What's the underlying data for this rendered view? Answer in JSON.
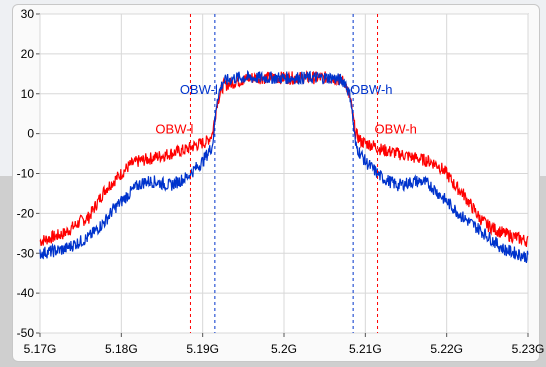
{
  "chart_data": {
    "type": "line",
    "title": "",
    "xlabel": "",
    "ylabel": "",
    "xlim": [
      5.17,
      5.23
    ],
    "ylim": [
      -50,
      30
    ],
    "x_ticks": [
      5.17,
      5.18,
      5.19,
      5.2,
      5.21,
      5.22,
      5.23
    ],
    "x_tick_labels": [
      "5.17G",
      "5.18G",
      "5.19G",
      "5.2G",
      "5.21G",
      "5.22G",
      "5.23G"
    ],
    "y_ticks": [
      -50,
      -40,
      -30,
      -20,
      -10,
      0,
      10,
      20,
      30
    ],
    "y_tick_labels": [
      "-50",
      "-40",
      "-30",
      "-20",
      "-10",
      "0",
      "10",
      "20",
      "30"
    ],
    "grid": true,
    "series": [
      {
        "color": "#ff0000",
        "x": [
          5.17,
          5.173,
          5.175,
          5.176,
          5.178,
          5.179,
          5.18,
          5.181,
          5.182,
          5.184,
          5.186,
          5.188,
          5.189,
          5.1905,
          5.1912,
          5.1918,
          5.1925,
          5.194,
          5.196,
          5.198,
          5.2,
          5.202,
          5.204,
          5.206,
          5.2075,
          5.2082,
          5.2088,
          5.2095,
          5.211,
          5.212,
          5.214,
          5.216,
          5.218,
          5.219,
          5.22,
          5.221,
          5.222,
          5.224,
          5.225,
          5.227,
          5.23
        ],
        "y": [
          -27,
          -25,
          -22,
          -21,
          -14,
          -12,
          -10,
          -8,
          -7,
          -6,
          -5,
          -4,
          -3,
          -2,
          0,
          8,
          12,
          13,
          14,
          14,
          14,
          14,
          14,
          14,
          13,
          8,
          0,
          -2,
          -3,
          -4,
          -5,
          -6,
          -7,
          -8,
          -10,
          -13,
          -15,
          -21,
          -23,
          -25,
          -27
        ]
      },
      {
        "color": "#0033cc",
        "x": [
          5.17,
          5.173,
          5.175,
          5.176,
          5.178,
          5.179,
          5.18,
          5.181,
          5.182,
          5.183,
          5.184,
          5.186,
          5.188,
          5.189,
          5.19,
          5.1912,
          5.1918,
          5.1925,
          5.194,
          5.196,
          5.198,
          5.2,
          5.202,
          5.204,
          5.206,
          5.2075,
          5.2082,
          5.2088,
          5.21,
          5.211,
          5.212,
          5.214,
          5.216,
          5.217,
          5.218,
          5.219,
          5.22,
          5.222,
          5.224,
          5.227,
          5.23
        ],
        "y": [
          -30,
          -29,
          -27,
          -26,
          -22,
          -19,
          -17,
          -15,
          -13,
          -12,
          -12,
          -13,
          -11,
          -9,
          -7,
          -3,
          9,
          13,
          14,
          14,
          14,
          14,
          14,
          14,
          14,
          13,
          9,
          -3,
          -7,
          -9,
          -11,
          -13,
          -12,
          -12,
          -13,
          -15,
          -17,
          -21,
          -24,
          -29,
          -31
        ]
      }
    ],
    "markers": [
      {
        "x": 5.1885,
        "color": "#ff0000",
        "label": "OBW-l",
        "label_y": 1
      },
      {
        "x": 5.1915,
        "color": "#0033cc",
        "label": "OBW-l",
        "label_y": 11
      },
      {
        "x": 5.2085,
        "color": "#0033cc",
        "label": "OBW-h",
        "label_y": 11
      },
      {
        "x": 5.2115,
        "color": "#ff0000",
        "label": "OBW-h",
        "label_y": 1
      }
    ]
  }
}
